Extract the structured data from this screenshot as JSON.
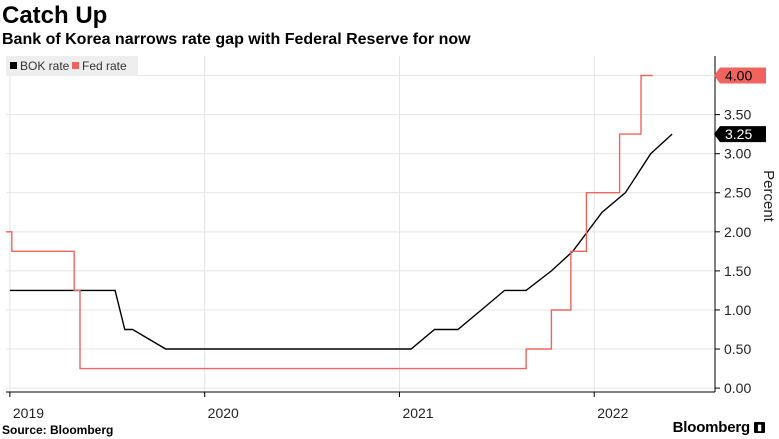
{
  "header": {
    "title": "Catch Up",
    "subtitle": "Bank of Korea narrows rate gap with Federal Reserve for now"
  },
  "footer": {
    "source": "Source: Bloomberg",
    "brand": "Bloomberg"
  },
  "colors": {
    "bok": "#000000",
    "fed": "#f0645f",
    "grid": "#e4e4e4",
    "legend_bg": "#eeeeee"
  },
  "chart_data": {
    "type": "line",
    "title": "Catch Up",
    "subtitle": "Bank of Korea narrows rate gap with Federal Reserve for now",
    "xlabel": "",
    "ylabel": "Percent",
    "x_range": [
      2018.98,
      2022.62
    ],
    "ylim": [
      -0.05,
      4.25
    ],
    "yticks": [
      0.0,
      0.5,
      1.0,
      1.5,
      2.0,
      2.5,
      3.0,
      3.5,
      4.0
    ],
    "ytick_labels": [
      "0.00",
      "0.50",
      "1.00",
      "1.50",
      "2.00",
      "2.50",
      "3.00",
      "3.50",
      "4.00"
    ],
    "xticks": [
      2019.0,
      2020.0,
      2021.0,
      2022.0
    ],
    "xtick_labels": [
      "2019",
      "2020",
      "2021",
      "2022"
    ],
    "grid": true,
    "legend_position": "top-left",
    "series": [
      {
        "name": "BOK rate",
        "color": "#000000",
        "end_label": "3.25",
        "points": [
          [
            2019.0,
            1.25
          ],
          [
            2019.54,
            1.25
          ],
          [
            2019.59,
            0.75
          ],
          [
            2019.63,
            0.75
          ],
          [
            2019.8,
            0.5
          ],
          [
            2021.06,
            0.5
          ],
          [
            2021.18,
            0.75
          ],
          [
            2021.3,
            0.75
          ],
          [
            2021.42,
            1.0
          ],
          [
            2021.54,
            1.25
          ],
          [
            2021.65,
            1.25
          ],
          [
            2021.78,
            1.5
          ],
          [
            2021.89,
            1.75
          ],
          [
            2022.04,
            2.25
          ],
          [
            2022.16,
            2.5
          ],
          [
            2022.29,
            3.0
          ],
          [
            2022.4,
            3.25
          ]
        ]
      },
      {
        "name": "Fed rate",
        "color": "#f0645f",
        "end_label": "4.00",
        "points": [
          [
            2018.98,
            2.0
          ],
          [
            2019.01,
            2.0
          ],
          [
            2019.01,
            1.75
          ],
          [
            2019.33,
            1.75
          ],
          [
            2019.33,
            1.25
          ],
          [
            2019.36,
            1.25
          ],
          [
            2019.36,
            0.25
          ],
          [
            2021.65,
            0.25
          ],
          [
            2021.65,
            0.5
          ],
          [
            2021.78,
            0.5
          ],
          [
            2021.78,
            1.0
          ],
          [
            2021.88,
            1.0
          ],
          [
            2021.88,
            1.75
          ],
          [
            2021.96,
            1.75
          ],
          [
            2021.96,
            2.5
          ],
          [
            2022.13,
            2.5
          ],
          [
            2022.13,
            3.25
          ],
          [
            2022.24,
            3.25
          ],
          [
            2022.24,
            4.0
          ],
          [
            2022.3,
            4.0
          ]
        ]
      }
    ]
  }
}
